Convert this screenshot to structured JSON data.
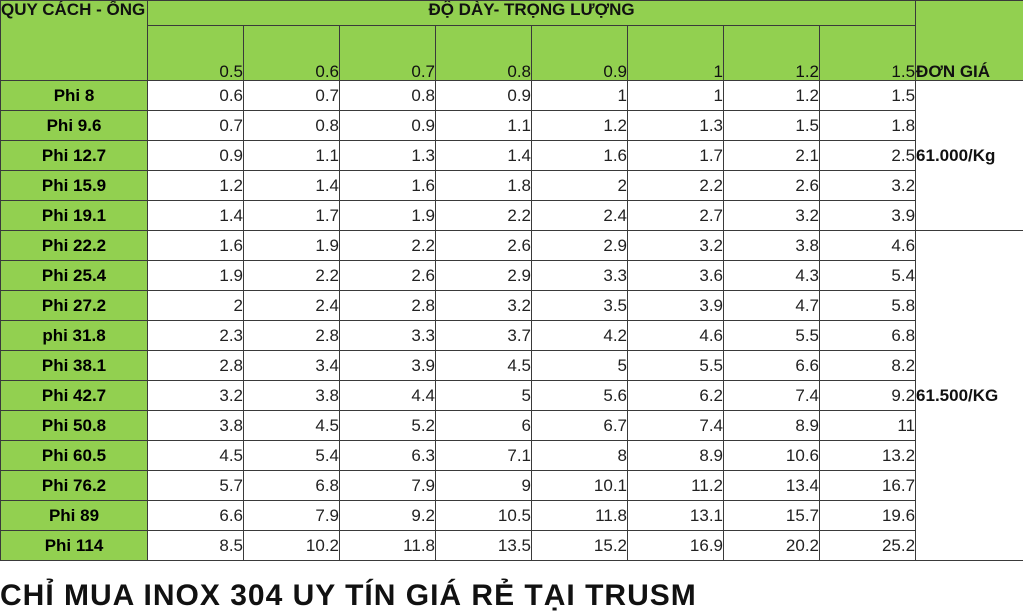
{
  "table": {
    "corner_header": "QUY CÁCH - ỐNG ỐNG",
    "thickness_header": "ĐỘ DÀY- TRỌNG LƯỢNG",
    "thicknesses": [
      "0.5",
      "0.6",
      "0.7",
      "0.8",
      "0.9",
      "1",
      "1.2",
      "1.5"
    ],
    "unit_price_header": "ĐƠN GIÁ",
    "rows": [
      {
        "spec": "Phi 8",
        "values": [
          "0.6",
          "0.7",
          "0.8",
          "0.9",
          "1",
          "1",
          "1.2",
          "1.5"
        ]
      },
      {
        "spec": "Phi 9.6",
        "values": [
          "0.7",
          "0.8",
          "0.9",
          "1.1",
          "1.2",
          "1.3",
          "1.5",
          "1.8"
        ]
      },
      {
        "spec": "Phi 12.7",
        "values": [
          "0.9",
          "1.1",
          "1.3",
          "1.4",
          "1.6",
          "1.7",
          "2.1",
          "2.5"
        ]
      },
      {
        "spec": "Phi 15.9",
        "values": [
          "1.2",
          "1.4",
          "1.6",
          "1.8",
          "2",
          "2.2",
          "2.6",
          "3.2"
        ]
      },
      {
        "spec": "Phi 19.1",
        "values": [
          "1.4",
          "1.7",
          "1.9",
          "2.2",
          "2.4",
          "2.7",
          "3.2",
          "3.9"
        ]
      },
      {
        "spec": "Phi 22.2",
        "values": [
          "1.6",
          "1.9",
          "2.2",
          "2.6",
          "2.9",
          "3.2",
          "3.8",
          "4.6"
        ]
      },
      {
        "spec": "Phi 25.4",
        "values": [
          "1.9",
          "2.2",
          "2.6",
          "2.9",
          "3.3",
          "3.6",
          "4.3",
          "5.4"
        ]
      },
      {
        "spec": "Phi 27.2",
        "values": [
          "2",
          "2.4",
          "2.8",
          "3.2",
          "3.5",
          "3.9",
          "4.7",
          "5.8"
        ]
      },
      {
        "spec": "phi 31.8",
        "values": [
          "2.3",
          "2.8",
          "3.3",
          "3.7",
          "4.2",
          "4.6",
          "5.5",
          "6.8"
        ]
      },
      {
        "spec": "Phi 38.1",
        "values": [
          "2.8",
          "3.4",
          "3.9",
          "4.5",
          "5",
          "5.5",
          "6.6",
          "8.2"
        ]
      },
      {
        "spec": "Phi 42.7",
        "values": [
          "3.2",
          "3.8",
          "4.4",
          "5",
          "5.6",
          "6.2",
          "7.4",
          "9.2"
        ]
      },
      {
        "spec": "Phi 50.8",
        "values": [
          "3.8",
          "4.5",
          "5.2",
          "6",
          "6.7",
          "7.4",
          "8.9",
          "11"
        ]
      },
      {
        "spec": "Phi 60.5",
        "values": [
          "4.5",
          "5.4",
          "6.3",
          "7.1",
          "8",
          "8.9",
          "10.6",
          "13.2"
        ]
      },
      {
        "spec": "Phi 76.2",
        "values": [
          "5.7",
          "6.8",
          "7.9",
          "9",
          "10.1",
          "11.2",
          "13.4",
          "16.7"
        ]
      },
      {
        "spec": "Phi 89",
        "values": [
          "6.6",
          "7.9",
          "9.2",
          "10.5",
          "11.8",
          "13.1",
          "15.7",
          "19.6"
        ]
      },
      {
        "spec": "Phi 114",
        "values": [
          "8.5",
          "10.2",
          "11.8",
          "13.5",
          "15.2",
          "16.9",
          "20.2",
          "25.2"
        ]
      }
    ],
    "prices": [
      "61.000/Kg",
      "61.500/KG"
    ]
  },
  "footer_text": "CHỈ MUA INOX 304 UY TÍN GIÁ RẺ TẠI TRUSM",
  "colors": {
    "header_green": "#92d050",
    "border": "#3a3a3a"
  }
}
